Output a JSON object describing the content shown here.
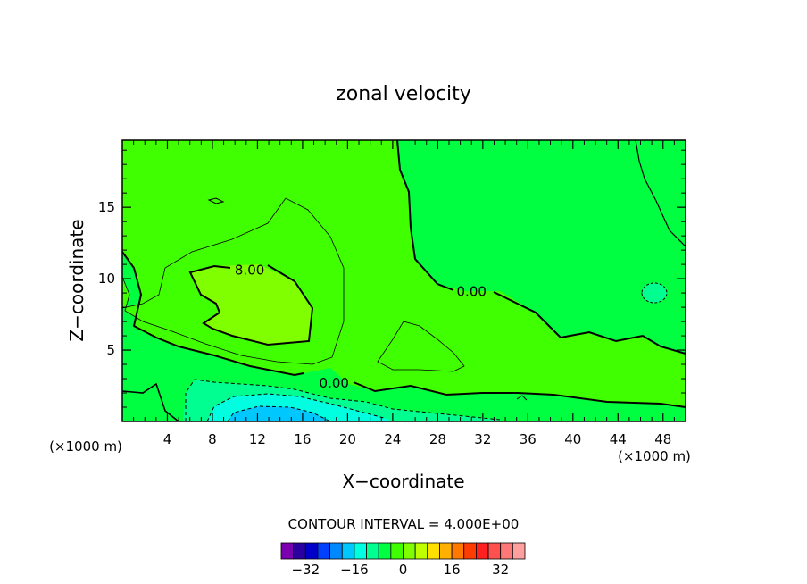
{
  "chart_data": {
    "type": "heatmap",
    "title": "zonal velocity",
    "xlabel": "X−coordinate",
    "ylabel": "Z−coordinate",
    "x_unit_left": "(×1000 m)",
    "x_unit_right": "(×1000 m)",
    "xlim": [
      0,
      50
    ],
    "ylim": [
      0,
      19.7
    ],
    "x_ticks": [
      4,
      8,
      12,
      16,
      20,
      24,
      28,
      32,
      36,
      40,
      44,
      48
    ],
    "y_ticks": [
      5,
      10,
      15
    ],
    "contour_labels": [
      {
        "text": "8.00",
        "x": 11.3,
        "y": 10.6
      },
      {
        "text": "0.00",
        "x": 31.0,
        "y": 9.1
      },
      {
        "text": "0.00",
        "x": 18.8,
        "y": 2.7
      }
    ],
    "contour_interval_text": "CONTOUR INTERVAL = 4.000E+00",
    "colorbar": {
      "colors": [
        "#7a00b0",
        "#2a00a0",
        "#0000c8",
        "#0040ff",
        "#0088ff",
        "#00c8ff",
        "#00ffe0",
        "#00ff90",
        "#00ff40",
        "#40ff00",
        "#80ff00",
        "#c0ff00",
        "#ffe000",
        "#ffb000",
        "#ff7800",
        "#ff3c00",
        "#ff2020",
        "#ff5050",
        "#ff7878",
        "#ffa0a0"
      ],
      "tick_labels": [
        "−32",
        "−16",
        "0",
        "16",
        "32"
      ]
    },
    "field_colors": {
      "band_0_4": "#00ff40",
      "band_4_8": "#40ff00",
      "band_8_12": "#80ff00",
      "band_m4_0": "#00ff90",
      "band_m8_m4": "#00ffe0",
      "band_m12_m8": "#00c8ff"
    }
  }
}
